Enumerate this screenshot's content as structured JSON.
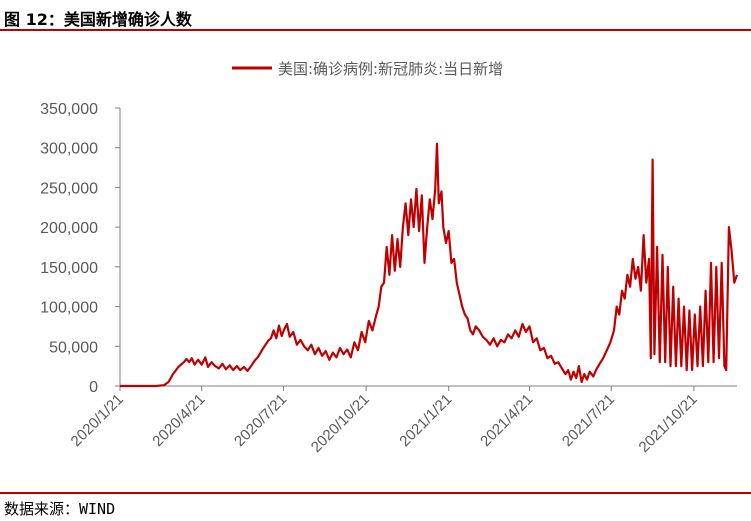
{
  "figure": {
    "title": "图 12：美国新增确诊人数",
    "source": "数据来源：WIND"
  },
  "colors": {
    "series": "#c00000",
    "axis": "#7f7f7f",
    "text": "#595959",
    "rule": "#c00000"
  },
  "chart_data": {
    "type": "line",
    "title": "",
    "xlabel": "",
    "ylabel": "",
    "ylim": [
      0,
      350000
    ],
    "grid": false,
    "legend_position": "top-center",
    "y_ticks": [
      "0",
      "50,000",
      "100,000",
      "150,000",
      "200,000",
      "250,000",
      "300,000",
      "350,000"
    ],
    "x_ticks": [
      "2020/1/21",
      "2020/4/21",
      "2020/7/21",
      "2020/10/21",
      "2021/1/21",
      "2021/4/21",
      "2021/7/21",
      "2021/10/21"
    ],
    "x_range": [
      "2020/1/21",
      "2021/12/8"
    ],
    "series": [
      {
        "name": "美国:确诊病例:新冠肺炎:当日新增",
        "points": [
          [
            "2020/1/21",
            0
          ],
          [
            "2020/2/15",
            0
          ],
          [
            "2020/3/1",
            0
          ],
          [
            "2020/3/10",
            1000
          ],
          [
            "2020/3/15",
            5000
          ],
          [
            "2020/3/20",
            15000
          ],
          [
            "2020/3/26",
            24000
          ],
          [
            "2020/4/1",
            30000
          ],
          [
            "2020/4/4",
            34000
          ],
          [
            "2020/4/7",
            30000
          ],
          [
            "2020/4/10",
            35000
          ],
          [
            "2020/4/13",
            27000
          ],
          [
            "2020/4/17",
            33000
          ],
          [
            "2020/4/21",
            27000
          ],
          [
            "2020/4/25",
            36000
          ],
          [
            "2020/4/28",
            24000
          ],
          [
            "2020/5/2",
            30000
          ],
          [
            "2020/5/6",
            25000
          ],
          [
            "2020/5/10",
            22000
          ],
          [
            "2020/5/14",
            28000
          ],
          [
            "2020/5/18",
            21000
          ],
          [
            "2020/5/22",
            26000
          ],
          [
            "2020/5/26",
            20000
          ],
          [
            "2020/5/30",
            25000
          ],
          [
            "2020/6/3",
            20000
          ],
          [
            "2020/6/7",
            24000
          ],
          [
            "2020/6/11",
            19000
          ],
          [
            "2020/6/15",
            25000
          ],
          [
            "2020/6/19",
            32000
          ],
          [
            "2020/6/23",
            37000
          ],
          [
            "2020/6/27",
            45000
          ],
          [
            "2020/7/1",
            52000
          ],
          [
            "2020/7/4",
            57000
          ],
          [
            "2020/7/7",
            60000
          ],
          [
            "2020/7/10",
            70000
          ],
          [
            "2020/7/13",
            60000
          ],
          [
            "2020/7/16",
            76000
          ],
          [
            "2020/7/19",
            63000
          ],
          [
            "2020/7/22",
            72000
          ],
          [
            "2020/7/25",
            78000
          ],
          [
            "2020/7/28",
            62000
          ],
          [
            "2020/8/1",
            68000
          ],
          [
            "2020/8/5",
            52000
          ],
          [
            "2020/8/9",
            58000
          ],
          [
            "2020/8/13",
            50000
          ],
          [
            "2020/8/17",
            45000
          ],
          [
            "2020/8/21",
            52000
          ],
          [
            "2020/8/25",
            40000
          ],
          [
            "2020/8/29",
            48000
          ],
          [
            "2020/9/2",
            38000
          ],
          [
            "2020/9/6",
            44000
          ],
          [
            "2020/9/10",
            33000
          ],
          [
            "2020/9/14",
            42000
          ],
          [
            "2020/9/18",
            36000
          ],
          [
            "2020/9/22",
            48000
          ],
          [
            "2020/9/26",
            40000
          ],
          [
            "2020/9/30",
            46000
          ],
          [
            "2020/10/4",
            36000
          ],
          [
            "2020/10/8",
            55000
          ],
          [
            "2020/10/12",
            45000
          ],
          [
            "2020/10/16",
            68000
          ],
          [
            "2020/10/20",
            55000
          ],
          [
            "2020/10/24",
            82000
          ],
          [
            "2020/10/28",
            70000
          ],
          [
            "2020/11/1",
            88000
          ],
          [
            "2020/11/4",
            100000
          ],
          [
            "2020/11/7",
            125000
          ],
          [
            "2020/11/10",
            130000
          ],
          [
            "2020/11/13",
            175000
          ],
          [
            "2020/11/16",
            140000
          ],
          [
            "2020/11/19",
            190000
          ],
          [
            "2020/11/22",
            145000
          ],
          [
            "2020/11/25",
            185000
          ],
          [
            "2020/11/28",
            150000
          ],
          [
            "2020/12/1",
            200000
          ],
          [
            "2020/12/4",
            230000
          ],
          [
            "2020/12/7",
            190000
          ],
          [
            "2020/12/10",
            235000
          ],
          [
            "2020/12/13",
            200000
          ],
          [
            "2020/12/16",
            248000
          ],
          [
            "2020/12/19",
            195000
          ],
          [
            "2020/12/22",
            240000
          ],
          [
            "2020/12/25",
            155000
          ],
          [
            "2020/12/28",
            200000
          ],
          [
            "2020/12/31",
            235000
          ],
          [
            "2021/1/3",
            210000
          ],
          [
            "2021/1/6",
            248000
          ],
          [
            "2021/1/8",
            305000
          ],
          [
            "2021/1/10",
            230000
          ],
          [
            "2021/1/13",
            245000
          ],
          [
            "2021/1/15",
            200000
          ],
          [
            "2021/1/18",
            180000
          ],
          [
            "2021/1/21",
            195000
          ],
          [
            "2021/1/24",
            155000
          ],
          [
            "2021/1/27",
            160000
          ],
          [
            "2021/1/30",
            130000
          ],
          [
            "2021/2/2",
            115000
          ],
          [
            "2021/2/5",
            100000
          ],
          [
            "2021/2/8",
            90000
          ],
          [
            "2021/2/11",
            85000
          ],
          [
            "2021/2/14",
            70000
          ],
          [
            "2021/2/17",
            65000
          ],
          [
            "2021/2/20",
            75000
          ],
          [
            "2021/2/24",
            70000
          ],
          [
            "2021/2/28",
            62000
          ],
          [
            "2021/3/4",
            58000
          ],
          [
            "2021/3/8",
            52000
          ],
          [
            "2021/3/12",
            60000
          ],
          [
            "2021/3/16",
            50000
          ],
          [
            "2021/3/20",
            58000
          ],
          [
            "2021/3/24",
            55000
          ],
          [
            "2021/3/28",
            65000
          ],
          [
            "2021/4/1",
            60000
          ],
          [
            "2021/4/5",
            70000
          ],
          [
            "2021/4/9",
            62000
          ],
          [
            "2021/4/13",
            78000
          ],
          [
            "2021/4/17",
            68000
          ],
          [
            "2021/4/21",
            75000
          ],
          [
            "2021/4/25",
            55000
          ],
          [
            "2021/4/29",
            60000
          ],
          [
            "2021/5/3",
            45000
          ],
          [
            "2021/5/7",
            48000
          ],
          [
            "2021/5/11",
            35000
          ],
          [
            "2021/5/15",
            38000
          ],
          [
            "2021/5/19",
            28000
          ],
          [
            "2021/5/23",
            30000
          ],
          [
            "2021/5/27",
            22000
          ],
          [
            "2021/5/31",
            15000
          ],
          [
            "2021/6/3",
            20000
          ],
          [
            "2021/6/6",
            8000
          ],
          [
            "2021/6/9",
            18000
          ],
          [
            "2021/6/12",
            10000
          ],
          [
            "2021/6/15",
            25000
          ],
          [
            "2021/6/18",
            5000
          ],
          [
            "2021/6/21",
            15000
          ],
          [
            "2021/6/24",
            8000
          ],
          [
            "2021/6/27",
            18000
          ],
          [
            "2021/7/1",
            12000
          ],
          [
            "2021/7/4",
            20000
          ],
          [
            "2021/7/8",
            28000
          ],
          [
            "2021/7/12",
            35000
          ],
          [
            "2021/7/16",
            45000
          ],
          [
            "2021/7/20",
            55000
          ],
          [
            "2021/7/24",
            70000
          ],
          [
            "2021/7/27",
            100000
          ],
          [
            "2021/7/30",
            90000
          ],
          [
            "2021/8/2",
            120000
          ],
          [
            "2021/8/5",
            110000
          ],
          [
            "2021/8/8",
            140000
          ],
          [
            "2021/8/11",
            125000
          ],
          [
            "2021/8/14",
            160000
          ],
          [
            "2021/8/17",
            135000
          ],
          [
            "2021/8/20",
            150000
          ],
          [
            "2021/8/23",
            120000
          ],
          [
            "2021/8/26",
            190000
          ],
          [
            "2021/8/29",
            130000
          ],
          [
            "2021/9/1",
            160000
          ],
          [
            "2021/9/3",
            35000
          ],
          [
            "2021/9/5",
            285000
          ],
          [
            "2021/9/7",
            40000
          ],
          [
            "2021/9/10",
            175000
          ],
          [
            "2021/9/13",
            30000
          ],
          [
            "2021/9/16",
            165000
          ],
          [
            "2021/9/19",
            30000
          ],
          [
            "2021/9/22",
            150000
          ],
          [
            "2021/9/25",
            25000
          ],
          [
            "2021/9/28",
            125000
          ],
          [
            "2021/10/1",
            25000
          ],
          [
            "2021/10/4",
            110000
          ],
          [
            "2021/10/7",
            25000
          ],
          [
            "2021/10/10",
            100000
          ],
          [
            "2021/10/13",
            20000
          ],
          [
            "2021/10/16",
            95000
          ],
          [
            "2021/10/19",
            20000
          ],
          [
            "2021/10/22",
            90000
          ],
          [
            "2021/10/25",
            25000
          ],
          [
            "2021/10/28",
            100000
          ],
          [
            "2021/10/31",
            25000
          ],
          [
            "2021/11/3",
            120000
          ],
          [
            "2021/11/6",
            30000
          ],
          [
            "2021/11/9",
            155000
          ],
          [
            "2021/11/12",
            30000
          ],
          [
            "2021/11/15",
            150000
          ],
          [
            "2021/11/18",
            35000
          ],
          [
            "2021/11/21",
            155000
          ],
          [
            "2021/11/24",
            25000
          ],
          [
            "2021/11/26",
            20000
          ],
          [
            "2021/11/29",
            200000
          ],
          [
            "2021/12/2",
            170000
          ],
          [
            "2021/12/5",
            130000
          ],
          [
            "2021/12/8",
            140000
          ]
        ]
      }
    ]
  }
}
